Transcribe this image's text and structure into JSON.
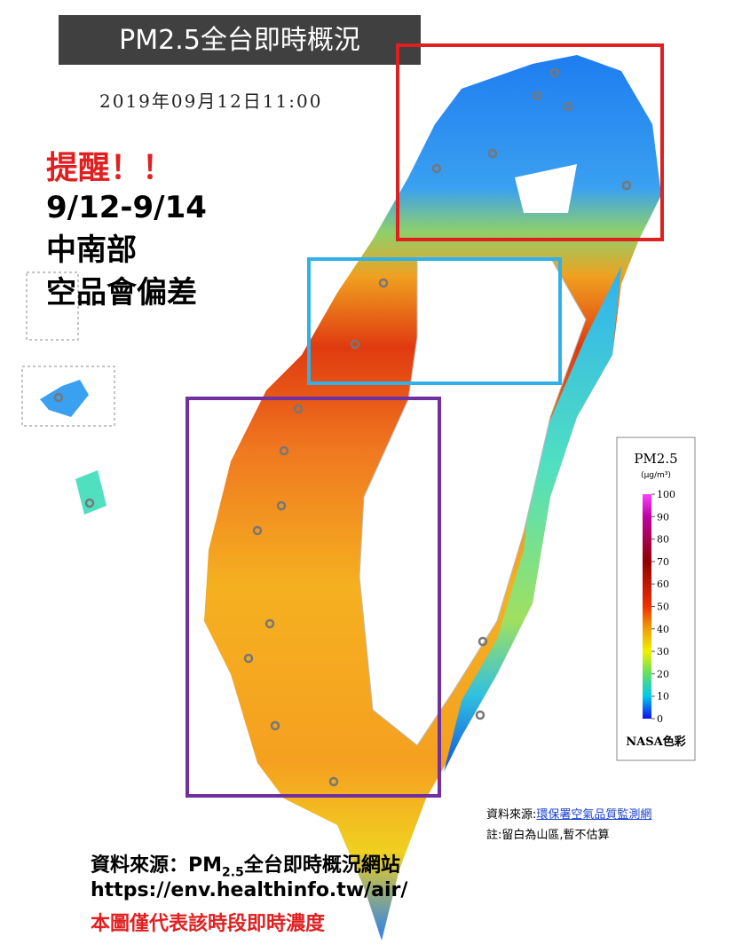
{
  "title": "PM2.5全台即時概況",
  "timestamp": "2019年09月12日11:00",
  "reminder": {
    "heading": "提醒！！",
    "lines": [
      "9/12-9/14",
      "中南部",
      "空品會偏差"
    ]
  },
  "legend": {
    "title": "PM2.5",
    "unit": "(μg/m³)",
    "ticks": [
      0,
      10,
      20,
      30,
      40,
      50,
      60,
      70,
      80,
      90,
      100
    ],
    "footer": "NASA色彩"
  },
  "note": {
    "source_label": "資料來源:",
    "source_link": "環保署空氣品質監測網",
    "remark": "註:留白為山區,暫不估算"
  },
  "footer": {
    "source_prefix": "資料來源：PM",
    "source_sub": "2.5",
    "source_suffix": "全台即時概況網站",
    "url": "https://env.healthinfo.tw/air/",
    "disclaimer": "本圖僅代表該時段即時濃度"
  }
}
